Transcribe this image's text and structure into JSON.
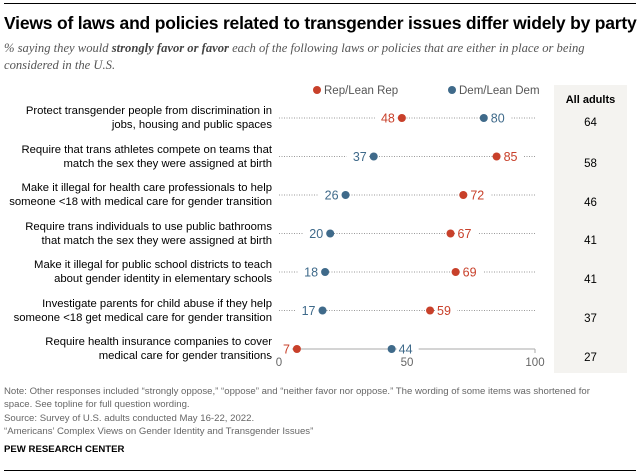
{
  "chart_data": {
    "type": "dot",
    "title": "Views of laws and policies related to transgender issues differ widely by party",
    "subtitle_parts": {
      "pre": "% saying they would ",
      "bold": "strongly favor or favor",
      "post": " each of the following laws or policies that are either in place or being considered in the U.S."
    },
    "xlabel": "",
    "ylabel": "",
    "xlim": [
      0,
      100
    ],
    "x_ticks": [
      "0",
      "50",
      "100"
    ],
    "grid": false,
    "legend_position": "top",
    "series": [
      {
        "name": "Rep/Lean Rep",
        "color": "#c8402a",
        "values": [
          48,
          85,
          72,
          67,
          69,
          59,
          7
        ]
      },
      {
        "name": "Dem/Lean Dem",
        "color": "#3f6a8a",
        "values": [
          80,
          37,
          26,
          20,
          18,
          17,
          44
        ]
      }
    ],
    "categories": [
      [
        "Protect transgender people from discrimination in",
        "jobs, housing and public spaces"
      ],
      [
        "Require that trans athletes compete on teams that",
        "match the sex they were assigned at birth"
      ],
      [
        "Make it illegal for health care professionals to help",
        "someone <18 with medical care for gender transition"
      ],
      [
        "Require trans individuals to use public bathrooms",
        "that match the sex they were assigned at birth"
      ],
      [
        "Make it illegal for public school districts to teach",
        "about gender identity in elementary schools"
      ],
      [
        "Investigate parents for child abuse if they help",
        "someone <18 get medical care for gender transition"
      ],
      [
        "Require health insurance companies to cover",
        "medical care for gender transitions"
      ]
    ],
    "all_adults": {
      "label": "All adults",
      "values": [
        "64",
        "58",
        "46",
        "41",
        "41",
        "37",
        "27"
      ]
    }
  },
  "footer": {
    "note_line1": "Note: Other responses included “strongly oppose,” “oppose” and “neither favor nor oppose.” The wording of some items was shortened for",
    "note_line2": "space. See topline for full question wording.",
    "source": "Source: Survey of U.S. adults conducted May 16-22, 2022.",
    "report": "“Americans’ Complex Views on Gender Identity and Transgender Issues”",
    "brand": "PEW RESEARCH CENTER"
  }
}
